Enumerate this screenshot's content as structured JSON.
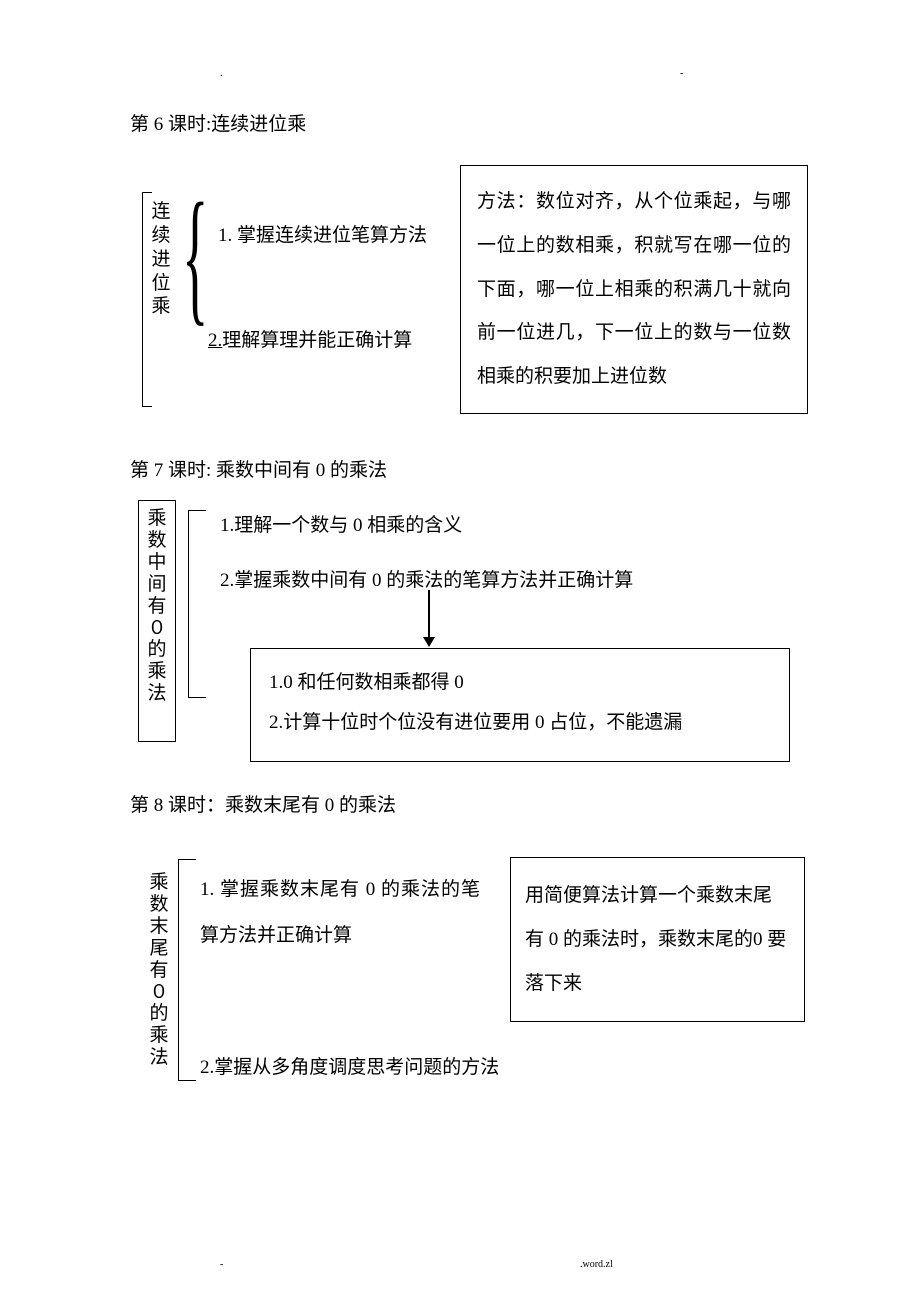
{
  "header": {
    "dot": ".",
    "dash": "-"
  },
  "lesson6": {
    "title": "第 6 课时:连续进位乘",
    "vlabel": "连续进位乘",
    "item1": "1. 掌握连续进位笔算方法",
    "item2_num": "2.",
    "item2_text": "理解算理并能正确计算",
    "box": "方法：数位对齐，从个位乘起，与哪一位上的数相乘，积就写在哪一位的下面，哪一位上相乘的积满几十就向前一位进几，下一位上的数与一位数相乘的积要加上进位数"
  },
  "lesson7": {
    "title": "第 7 课时: 乘数中间有 0 的乘法",
    "vlabel": "乘数中间有０的乘法",
    "item1": "1.理解一个数与 0 相乘的含义",
    "item2": "2.掌握乘数中间有 0 的乘法的笔算方法并正确计算",
    "box_line1": "1.0 和任何数相乘都得 0",
    "box_line2": "2.计算十位时个位没有进位要用 0 占位，不能遗漏"
  },
  "lesson8": {
    "title": "第 8 课时：乘数末尾有 0 的乘法",
    "vlabel": "乘数末尾有０的乘法",
    "item1": "1. 掌握乘数末尾有 0 的乘法的笔算方法并正确计算",
    "item2": "2.掌握从多角度调度思考问题的方法",
    "box": "用简便算法计算一个乘数末尾有 0 的乘法时，乘数末尾的0 要落下来"
  },
  "footer": {
    "dash": "-",
    "text": ".word.zl"
  }
}
